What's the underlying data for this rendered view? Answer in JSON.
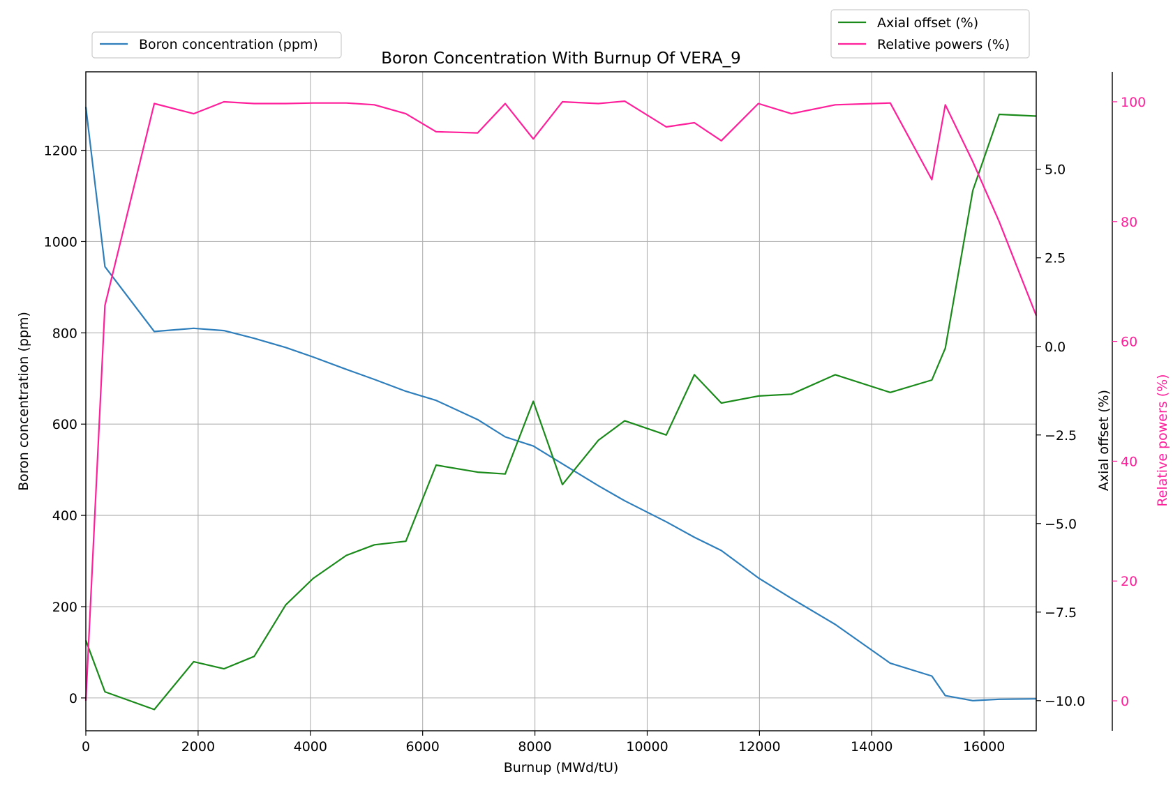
{
  "chart_data": {
    "type": "line",
    "title": "Boron Concentration With Burnup Of VERA_9",
    "xlabel": "Burnup (MWd/tU)",
    "xlim": [
      0,
      16930
    ],
    "xticks": [
      "0",
      "2000",
      "4000",
      "6000",
      "8000",
      "10000",
      "12000",
      "14000",
      "16000"
    ],
    "grid": true,
    "colors": {
      "boron": "#2e7ebc",
      "axial": "#1a8a1a",
      "power": "#ff1f9a"
    },
    "axes": {
      "left": {
        "label": "Boron concentration (ppm)",
        "ylim": [
          -72,
          1372
        ],
        "ticks": [
          "0",
          "200",
          "400",
          "600",
          "800",
          "1000",
          "1200"
        ]
      },
      "right1": {
        "label": "Axial offset (%)",
        "ylim": [
          -10.85,
          7.75
        ],
        "ticks": [
          "−10.0",
          "−7.5",
          "−5.0",
          "−2.5",
          "0.0",
          "2.5",
          "5.0"
        ]
      },
      "right2": {
        "label": "Relative powers (%)",
        "ylim": [
          -5,
          105
        ],
        "ticks": [
          "0",
          "20",
          "40",
          "60",
          "80",
          "100"
        ]
      }
    },
    "legend_left": {
      "placement": "upper-left-outside",
      "entries": [
        "Boron concentration (ppm)"
      ]
    },
    "legend_right": {
      "placement": "upper-right-outside",
      "entries": [
        "Axial offset (%)",
        "Relative powers (%)"
      ]
    },
    "series": [
      {
        "name": "Boron concentration (ppm)",
        "axis": "left",
        "x": [
          0,
          340,
          1220,
          1920,
          2460,
          3000,
          3560,
          4050,
          4640,
          5140,
          5700,
          6240,
          6980,
          7470,
          7970,
          8490,
          9130,
          9600,
          10340,
          10840,
          11320,
          11980,
          12570,
          13350,
          14330,
          15070,
          15310,
          15800,
          16270,
          16930
        ],
        "y": [
          1295,
          945,
          803,
          810,
          805,
          788,
          768,
          747,
          720,
          698,
          672,
          652,
          610,
          572,
          552,
          513,
          465,
          432,
          386,
          352,
          323,
          263,
          218,
          161,
          76,
          48,
          5,
          -6,
          -3,
          -2
        ]
      },
      {
        "name": "Axial offset (%)",
        "axis": "right1",
        "x": [
          0,
          340,
          1220,
          1920,
          2460,
          3000,
          3560,
          4050,
          4640,
          5140,
          5700,
          6240,
          6980,
          7470,
          7970,
          8490,
          9130,
          9600,
          10340,
          10840,
          11320,
          11980,
          12570,
          13350,
          14330,
          15070,
          15310,
          15800,
          16270,
          16930
        ],
        "y": [
          -8.3,
          -9.75,
          -10.25,
          -8.9,
          -9.1,
          -8.75,
          -7.3,
          -6.55,
          -5.9,
          -5.6,
          -5.5,
          -3.35,
          -3.55,
          -3.6,
          -1.55,
          -3.9,
          -2.65,
          -2.1,
          -2.5,
          -0.8,
          -1.6,
          -1.4,
          -1.35,
          -0.8,
          -1.3,
          -0.95,
          -0.05,
          4.4,
          6.55,
          6.5
        ]
      },
      {
        "name": "Relative powers (%)",
        "axis": "right2",
        "x": [
          0,
          340,
          1220,
          1920,
          2460,
          3000,
          3560,
          4050,
          4640,
          5140,
          5700,
          6240,
          6980,
          7470,
          7970,
          8490,
          9130,
          9600,
          10340,
          10840,
          11320,
          11980,
          12570,
          13350,
          14330,
          15070,
          15310,
          15800,
          16270,
          16930
        ],
        "y": [
          0,
          66,
          99.7,
          98,
          100,
          99.7,
          99.7,
          99.8,
          99.8,
          99.5,
          98,
          95,
          94.8,
          99.7,
          93.8,
          100,
          99.7,
          100.1,
          95.8,
          96.5,
          93.5,
          99.7,
          98,
          99.5,
          99.8,
          87,
          99.5,
          90,
          80,
          64.3
        ]
      }
    ]
  }
}
